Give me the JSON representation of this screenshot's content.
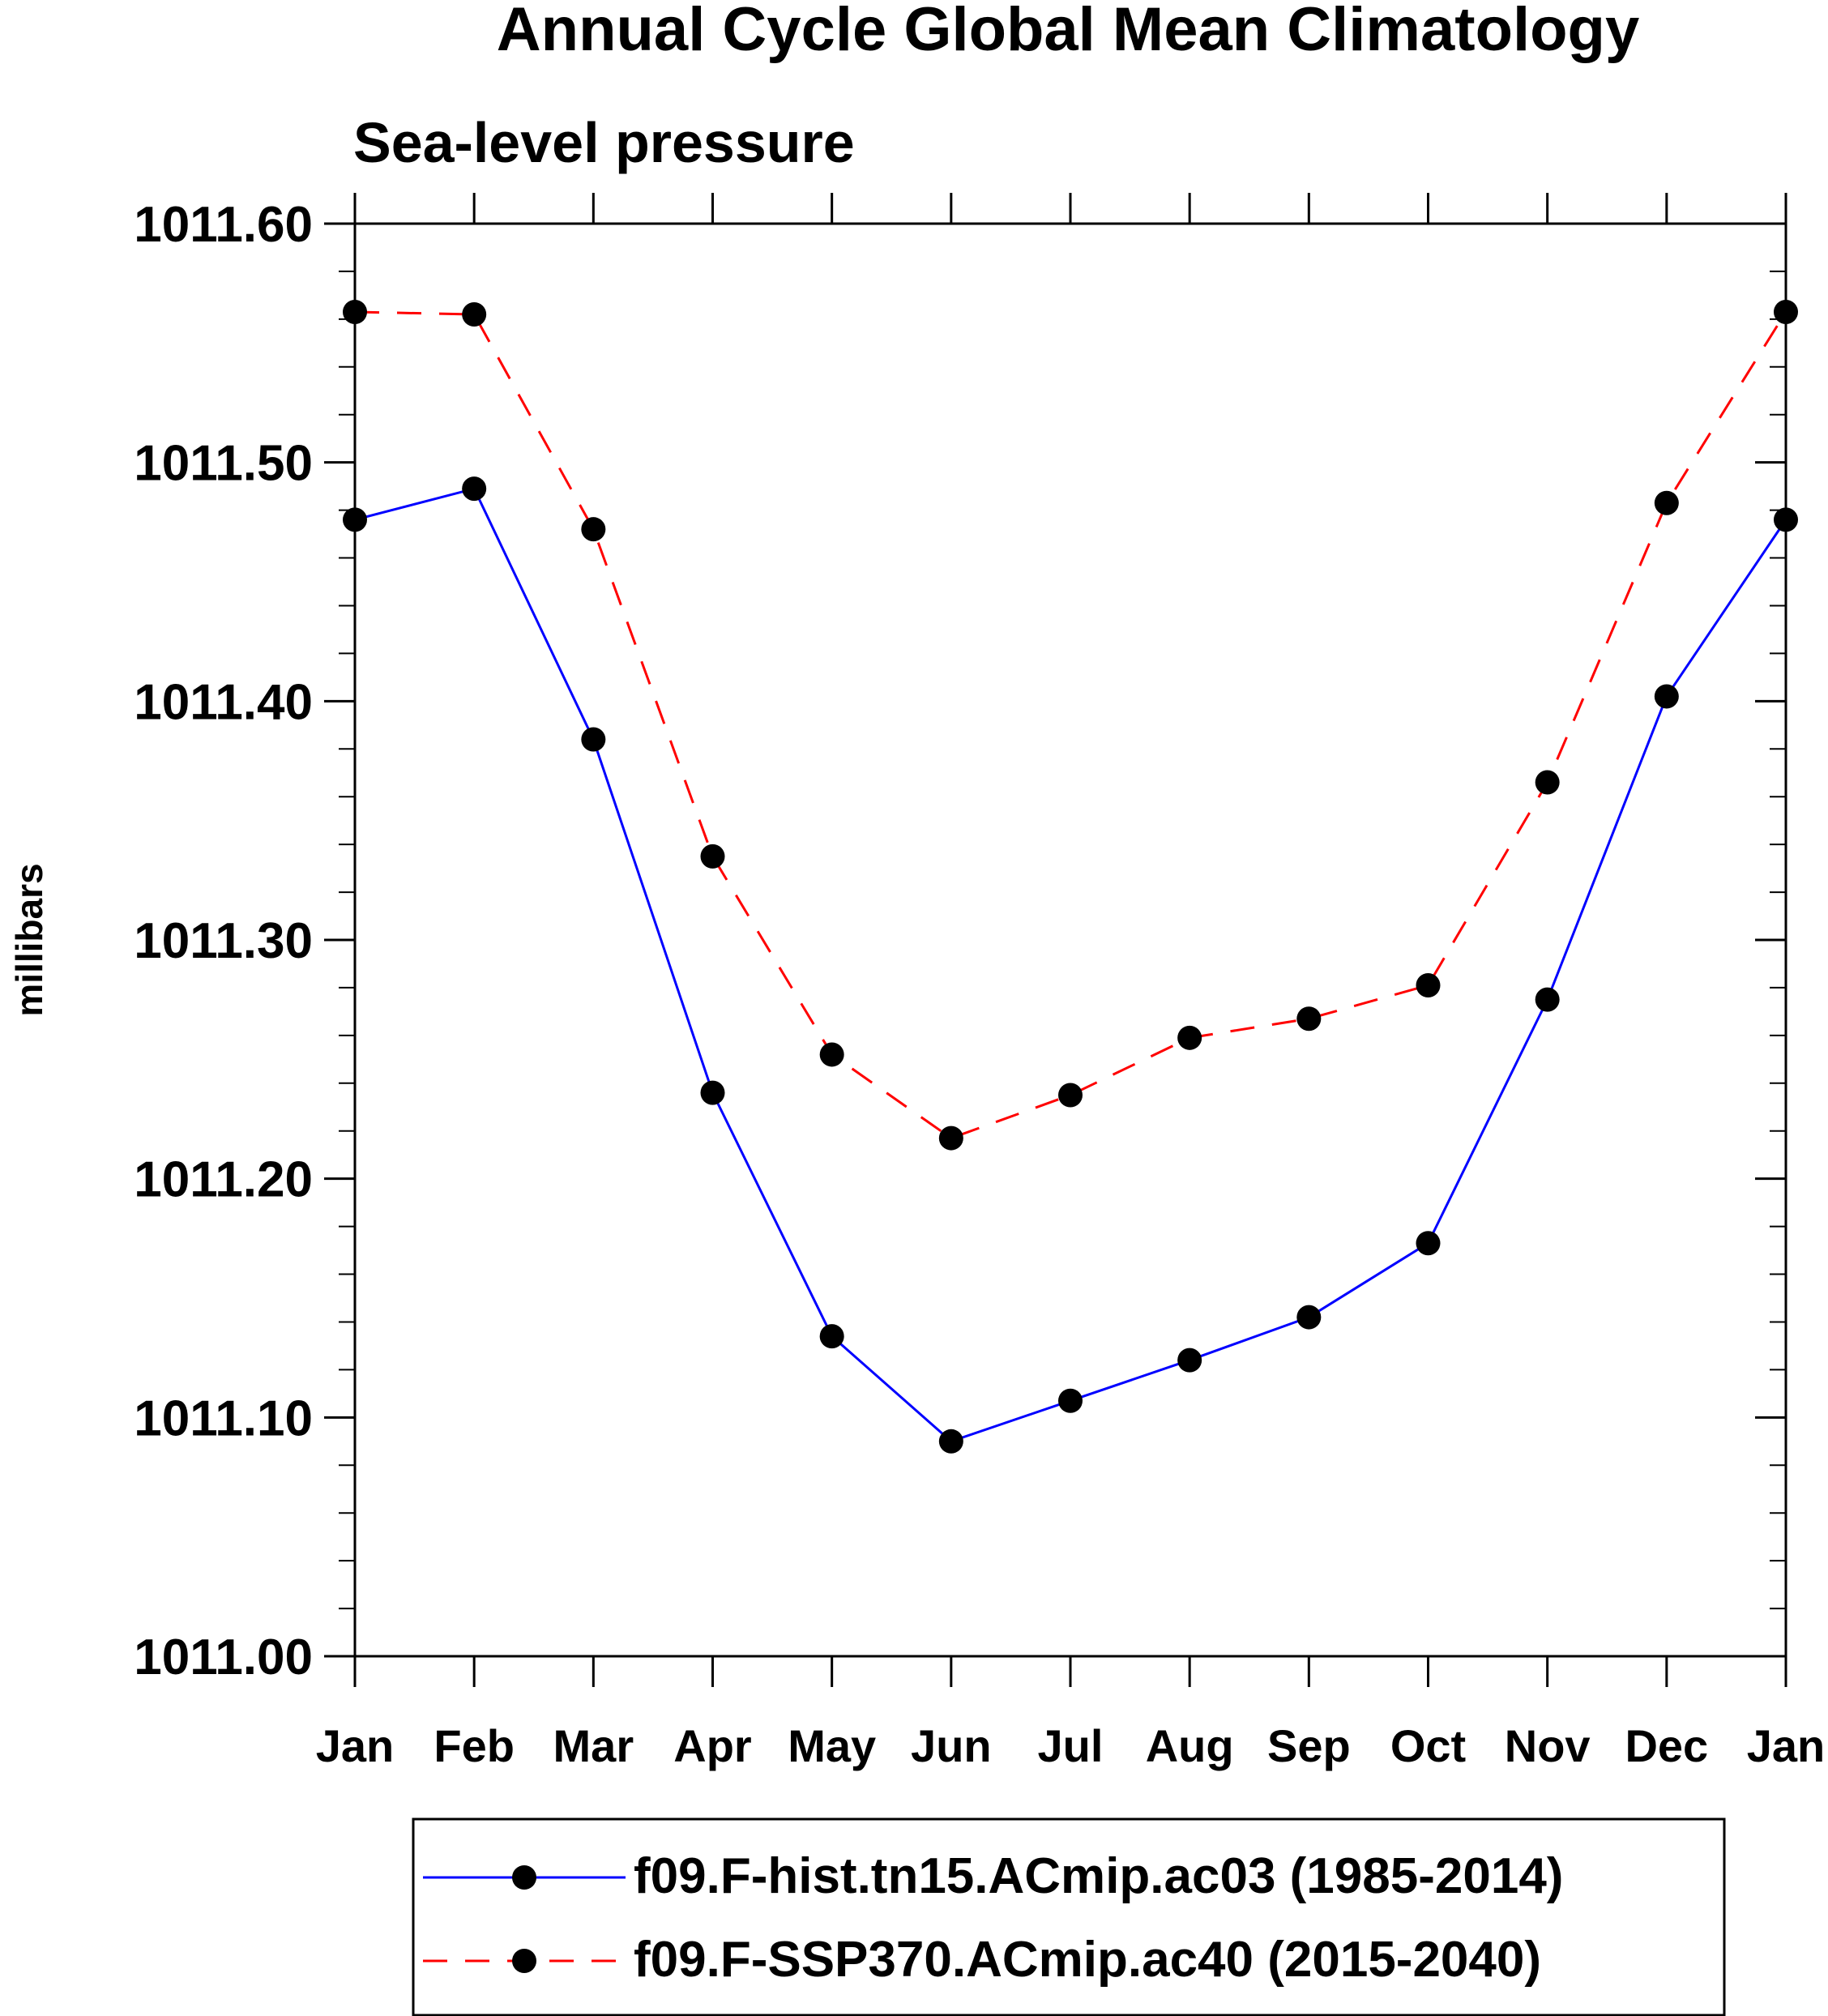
{
  "chart_data": {
    "type": "line",
    "title": "Annual Cycle Global Mean Climatology",
    "subtitle": "Sea-level pressure",
    "xlabel": "",
    "ylabel": "millibars",
    "categories": [
      "Jan",
      "Feb",
      "Mar",
      "Apr",
      "May",
      "Jun",
      "Jul",
      "Aug",
      "Sep",
      "Oct",
      "Nov",
      "Dec",
      "Jan"
    ],
    "ylim": [
      1011.0,
      1011.6
    ],
    "yticks": [
      "1011.00",
      "1011.10",
      "1011.20",
      "1011.30",
      "1011.40",
      "1011.50",
      "1011.60"
    ],
    "ytick_values": [
      1011.0,
      1011.1,
      1011.2,
      1011.3,
      1011.4,
      1011.5,
      1011.6
    ],
    "grid": false,
    "legend_position": "bottom",
    "series": [
      {
        "name": "f09.F-hist.tn15.ACmip.ac03 (1985-2014)",
        "color": "#0000ff",
        "dash": "solid",
        "values": [
          1011.476,
          1011.489,
          1011.384,
          1011.236,
          1011.134,
          1011.09,
          1011.107,
          1011.124,
          1011.142,
          1011.173,
          1011.275,
          1011.402,
          1011.476
        ]
      },
      {
        "name": "f09.F-SSP370.ACmip.ac40 (2015-2040)",
        "color": "#ff0000",
        "dash": "dashed",
        "values": [
          1011.563,
          1011.562,
          1011.472,
          1011.335,
          1011.252,
          1011.217,
          1011.235,
          1011.259,
          1011.267,
          1011.281,
          1011.366,
          1011.483,
          1011.563
        ]
      }
    ]
  }
}
